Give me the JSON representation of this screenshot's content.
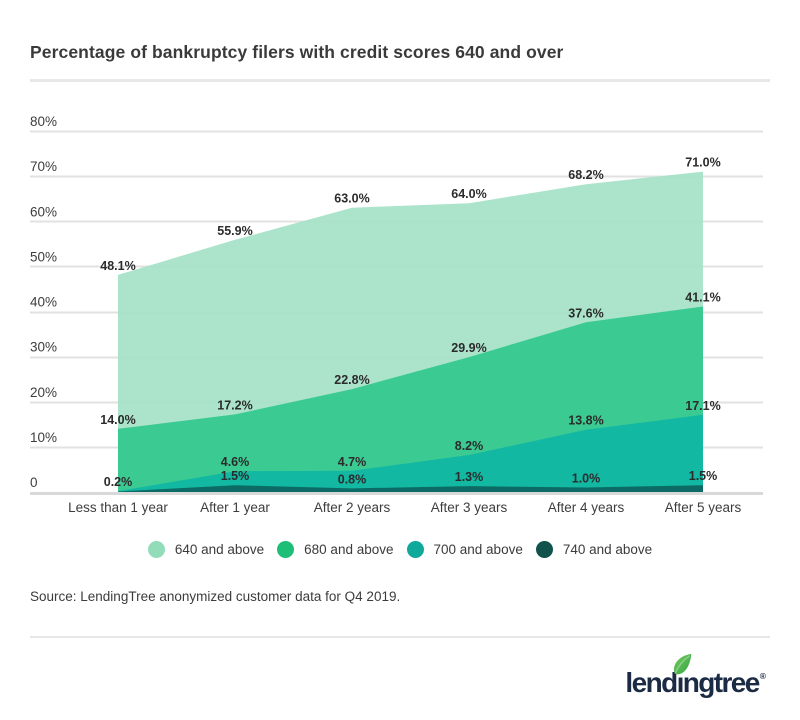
{
  "title": "Percentage of bankruptcy filers with credit scores 640 and over",
  "source_note": "Source: LendingTree anonymized customer data for Q4 2019.",
  "logo": {
    "text": "lendingtree",
    "registered_mark": "®"
  },
  "colors": {
    "background": "#FFFFFF",
    "title_text": "#3A3A3A",
    "axis_text": "#3D3D3D",
    "annotation_text": "#2B2B2B",
    "gridline": "#E2E2E2",
    "axis_line": "#D9D9D9",
    "divider_rule": "#E8E8E8",
    "logo_navy": "#1B2B44",
    "logo_leaf_green": "#3DB24A"
  },
  "chart_data": {
    "type": "area",
    "variant": "overlapping-areas",
    "title": "Percentage of bankruptcy filers with credit scores 640 and over",
    "xlabel": "",
    "ylabel": "",
    "ylim": [
      0,
      80
    ],
    "grid": true,
    "legend_position": "bottom",
    "categories": [
      "Less than 1 year",
      "After 1 year",
      "After 2 years",
      "After 3 years",
      "After 4 years",
      "After 5 years"
    ],
    "series": [
      {
        "name": "640 and above",
        "color": "#93DCBA",
        "fill": "#A5E2C7",
        "fill_opacity": 0.93,
        "values": [
          48.1,
          55.9,
          63.0,
          64.0,
          68.2,
          71.0
        ],
        "labels": [
          "48.1%",
          "55.9%",
          "63.0%",
          "64.0%",
          "68.2%",
          "71.0%"
        ]
      },
      {
        "name": "680 and above",
        "color": "#1EBE78",
        "fill": "#3CCA93",
        "fill_opacity": 1,
        "values": [
          14.0,
          17.2,
          22.8,
          29.9,
          37.6,
          41.1
        ],
        "labels": [
          "14.0%",
          "17.2%",
          "22.8%",
          "29.9%",
          "37.6%",
          "41.1%"
        ]
      },
      {
        "name": "700 and above",
        "color": "#0FA89A",
        "fill": "#12B8A2",
        "fill_opacity": 1,
        "values": [
          0.2,
          4.6,
          4.7,
          8.2,
          13.8,
          17.1
        ],
        "labels": [
          "0.2%",
          "4.6%",
          "4.7%",
          "8.2%",
          "13.8%",
          "17.1%"
        ]
      },
      {
        "name": "740 and above",
        "color": "#11524C",
        "fill": "#0C6B64",
        "fill_opacity": 1,
        "values": [
          0.1,
          1.5,
          0.8,
          1.3,
          1.0,
          1.5
        ],
        "labels": [
          "",
          "1.5%",
          "0.8%",
          "1.3%",
          "1.0%",
          "1.5%"
        ]
      }
    ],
    "y_ticks": [
      {
        "value": 0,
        "label": "0"
      },
      {
        "value": 10,
        "label": "10%"
      },
      {
        "value": 20,
        "label": "20%"
      },
      {
        "value": 30,
        "label": "30%"
      },
      {
        "value": 40,
        "label": "40%"
      },
      {
        "value": 50,
        "label": "50%"
      },
      {
        "value": 60,
        "label": "60%"
      },
      {
        "value": 70,
        "label": "70%"
      },
      {
        "value": 80,
        "label": "80%"
      }
    ]
  }
}
